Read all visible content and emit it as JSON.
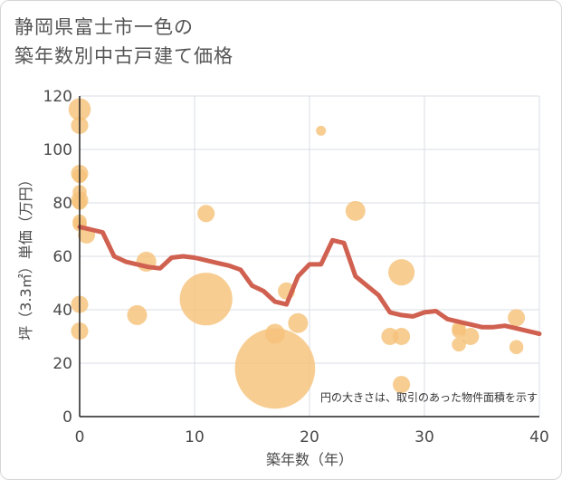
{
  "title_line1": "静岡県富士市一色の",
  "title_line2": "築年数別中古戸建て価格",
  "chart_data": {
    "type": "scatter",
    "title": "静岡県富士市一色の築年数別中古戸建て価格",
    "xlabel": "築年数（年）",
    "ylabel": "坪（3.3㎡）単価（万円）",
    "xlim": [
      0,
      40
    ],
    "ylim": [
      0,
      120
    ],
    "xticks": [
      0,
      10,
      20,
      30,
      40
    ],
    "yticks": [
      0,
      20,
      40,
      60,
      80,
      100,
      120
    ],
    "note": "円の大きさは、取引のあった物件面積を示す",
    "colors": {
      "bubble": "#f5c27a",
      "line": "#d0604f",
      "grid": "#d9dde4",
      "axis": "#222222"
    },
    "points": [
      {
        "x": 0,
        "y": 115,
        "size": 5
      },
      {
        "x": 0,
        "y": 109,
        "size": 3
      },
      {
        "x": 0,
        "y": 91,
        "size": 3
      },
      {
        "x": 0,
        "y": 90,
        "size": 2
      },
      {
        "x": 0,
        "y": 84,
        "size": 2
      },
      {
        "x": 0,
        "y": 81,
        "size": 3
      },
      {
        "x": 0,
        "y": 80,
        "size": 2
      },
      {
        "x": 0,
        "y": 73,
        "size": 2
      },
      {
        "x": 0,
        "y": 72,
        "size": 2
      },
      {
        "x": 0,
        "y": 42,
        "size": 3
      },
      {
        "x": 0,
        "y": 32,
        "size": 3
      },
      {
        "x": 0.6,
        "y": 68,
        "size": 3
      },
      {
        "x": 5,
        "y": 38,
        "size": 4
      },
      {
        "x": 5.8,
        "y": 58,
        "size": 4
      },
      {
        "x": 11,
        "y": 76,
        "size": 3
      },
      {
        "x": 11,
        "y": 44,
        "size": 28
      },
      {
        "x": 17,
        "y": 18,
        "size": 65
      },
      {
        "x": 17,
        "y": 31,
        "size": 4
      },
      {
        "x": 18,
        "y": 47,
        "size": 3
      },
      {
        "x": 19,
        "y": 35,
        "size": 4
      },
      {
        "x": 21,
        "y": 107,
        "size": 1
      },
      {
        "x": 24,
        "y": 77,
        "size": 4
      },
      {
        "x": 27,
        "y": 30,
        "size": 3
      },
      {
        "x": 28,
        "y": 54,
        "size": 7
      },
      {
        "x": 28,
        "y": 30,
        "size": 3
      },
      {
        "x": 28,
        "y": 12,
        "size": 3
      },
      {
        "x": 33,
        "y": 33,
        "size": 2
      },
      {
        "x": 33,
        "y": 32,
        "size": 2
      },
      {
        "x": 33,
        "y": 27,
        "size": 2
      },
      {
        "x": 34,
        "y": 30,
        "size": 3
      },
      {
        "x": 38,
        "y": 37,
        "size": 3
      },
      {
        "x": 38,
        "y": 26,
        "size": 2
      }
    ],
    "trend": {
      "x": [
        0,
        1,
        2,
        3,
        4,
        5,
        6,
        7,
        8,
        9,
        10,
        11,
        12,
        13,
        14,
        15,
        16,
        17,
        18,
        19,
        20,
        21,
        22,
        23,
        24,
        25,
        26,
        27,
        28,
        29,
        30,
        31,
        32,
        33,
        34,
        35,
        36,
        37,
        38,
        39,
        40
      ],
      "y": [
        71,
        70,
        69,
        60,
        58,
        57,
        56,
        55.5,
        59.5,
        60,
        59.5,
        58.5,
        57.5,
        56.5,
        55,
        49,
        47,
        43,
        42,
        52.5,
        57,
        57,
        66,
        65,
        52.5,
        49,
        45.5,
        39,
        38,
        37.5,
        39,
        39.5,
        36.5,
        35.5,
        34.5,
        33.5,
        33.5,
        34,
        33,
        32,
        31
      ]
    }
  }
}
